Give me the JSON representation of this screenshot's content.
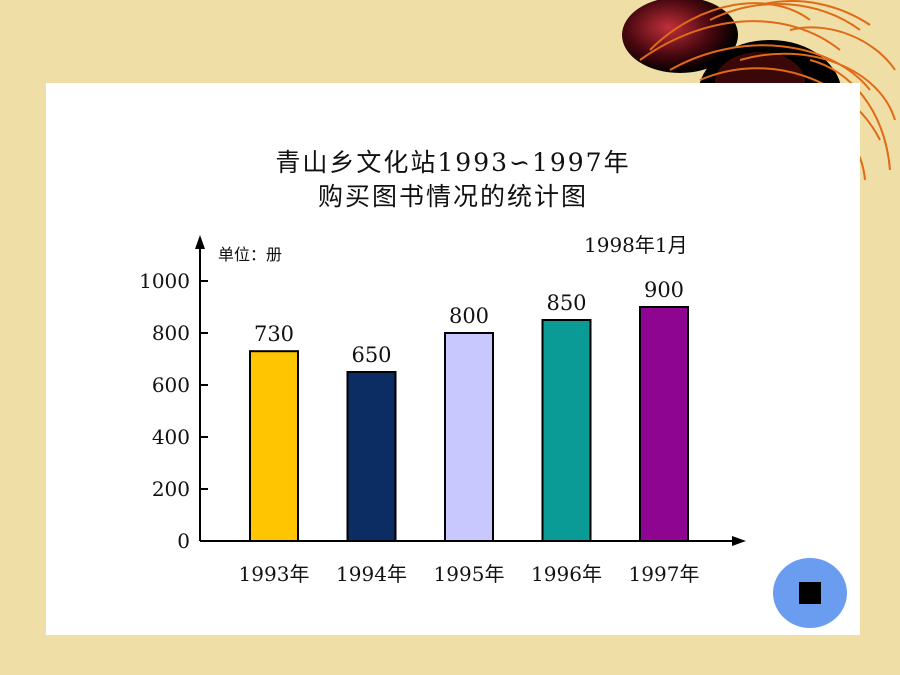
{
  "chart_data": {
    "type": "bar",
    "title_line1": "青山乡文化站1993∽1997年",
    "title_line2": "购买图书情况的统计图",
    "unit_label": "单位：册",
    "date_note": "1998年1月",
    "categories": [
      "1993年",
      "1994年",
      "1995年",
      "1996年",
      "1997年"
    ],
    "values": [
      730,
      650,
      800,
      850,
      900
    ],
    "colors": [
      "#ffc600",
      "#0c2d63",
      "#c8c8ff",
      "#0b9b96",
      "#8e0591"
    ],
    "ylim": [
      0,
      1000
    ],
    "yticks": [
      0,
      200,
      400,
      600,
      800,
      1000
    ],
    "grid": false,
    "legend": "none"
  },
  "controls": {
    "stop_icon": "stop-icon"
  }
}
